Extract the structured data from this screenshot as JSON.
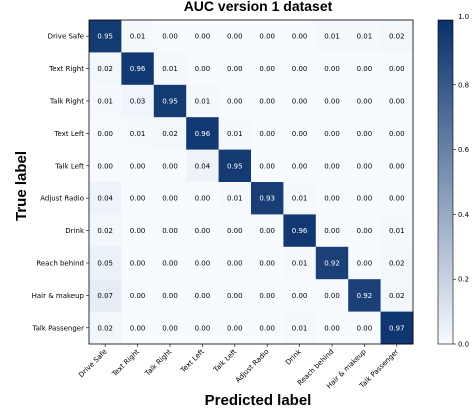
{
  "chart_data": {
    "type": "heatmap",
    "title": "AUC version 1 dataset",
    "xlabel": "Predicted label",
    "ylabel": "True label",
    "categories": [
      "Drive Safe",
      "Text Right",
      "Talk Right",
      "Text Left",
      "Talk Left",
      "Adjust Radio",
      "Drink",
      "Reach behind",
      "Hair & makeup",
      "Talk Passenger"
    ],
    "values": [
      [
        "0.95",
        "0.01",
        "0.00",
        "0.00",
        "0.00",
        "0.00",
        "0.00",
        "0.01",
        "0.01",
        "0.02"
      ],
      [
        "0.02",
        "0.96",
        "0.01",
        "0.00",
        "0.00",
        "0.00",
        "0.00",
        "0.00",
        "0.00",
        "0.00"
      ],
      [
        "0.01",
        "0.03",
        "0.95",
        "0.01",
        "0.00",
        "0.00",
        "0.00",
        "0.00",
        "0.00",
        "0.00"
      ],
      [
        "0.00",
        "0.01",
        "0.02",
        "0.96",
        "0.01",
        "0.00",
        "0.00",
        "0.00",
        "0.00",
        "0.00"
      ],
      [
        "0.00",
        "0.00",
        "0.00",
        "0.04",
        "0.95",
        "0.00",
        "0.00",
        "0.00",
        "0.00",
        "0.00"
      ],
      [
        "0.04",
        "0.00",
        "0.00",
        "0.00",
        "0.01",
        "0.93",
        "0.01",
        "0.00",
        "0.00",
        "0.00"
      ],
      [
        "0.02",
        "0.00",
        "0.00",
        "0.00",
        "0.00",
        "0.00",
        "0.96",
        "0.00",
        "0.00",
        "0.01"
      ],
      [
        "0.05",
        "0.00",
        "0.00",
        "0.00",
        "0.00",
        "0.00",
        "0.01",
        "0.92",
        "0.00",
        "0.02"
      ],
      [
        "0.07",
        "0.00",
        "0.00",
        "0.00",
        "0.00",
        "0.00",
        "0.00",
        "0.00",
        "0.92",
        "0.02"
      ],
      [
        "0.02",
        "0.00",
        "0.00",
        "0.00",
        "0.00",
        "0.00",
        "0.01",
        "0.00",
        "0.00",
        "0.97"
      ]
    ],
    "colorbar": {
      "ticks": [
        "0.0",
        "0.2",
        "0.4",
        "0.6",
        "0.8"
      ],
      "range": [
        0,
        1
      ],
      "top_value_label": "1.0"
    },
    "colors": {
      "low": "#f7fbff",
      "high": "#08306b",
      "text_dark": "#000000",
      "text_light": "#ffffff"
    }
  }
}
